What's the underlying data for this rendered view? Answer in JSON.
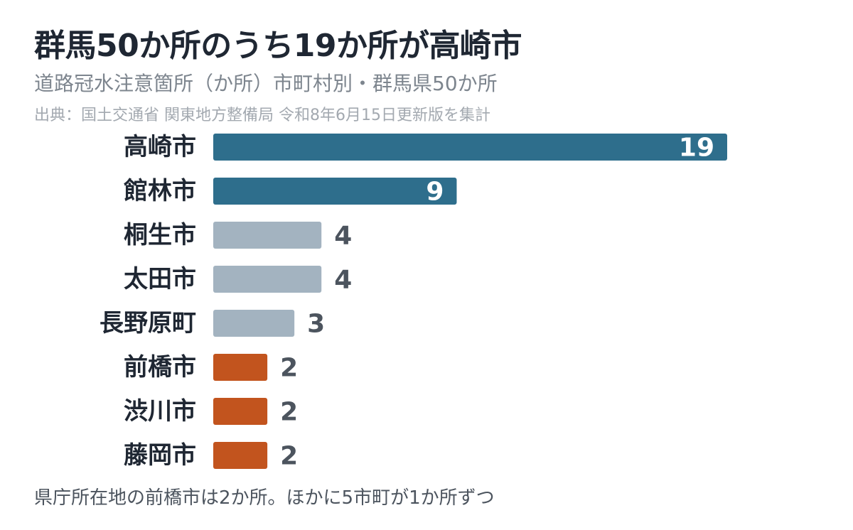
{
  "header": {
    "title": "群馬50か所のうち19か所が高崎市",
    "subtitle": "道路冠水注意箇所（か所）市町村別・群馬県50か所",
    "source": "出典：国土交通省 関東地方整備局 令和8年6月15日更新版を集計"
  },
  "footer": {
    "note": "県庁所在地の前橋市は2か所。ほかに5市町が1か所ずつ"
  },
  "colors": {
    "blue": "#2e6e8c",
    "gray": "#a3b3c0",
    "orange": "#c2541e",
    "label_inside": "#ffffff",
    "label_outside": "#4c545e"
  },
  "chart_data": {
    "type": "bar",
    "orientation": "horizontal",
    "categories": [
      "高崎市",
      "館林市",
      "桐生市",
      "太田市",
      "長野原町",
      "前橋市",
      "渋川市",
      "藤岡市"
    ],
    "values": [
      19,
      9,
      4,
      4,
      3,
      2,
      2,
      2
    ],
    "bar_colors": [
      "blue",
      "blue",
      "gray",
      "gray",
      "gray",
      "orange",
      "orange",
      "orange"
    ],
    "xlim": [
      0,
      19
    ],
    "grid": false,
    "legend": "none"
  }
}
